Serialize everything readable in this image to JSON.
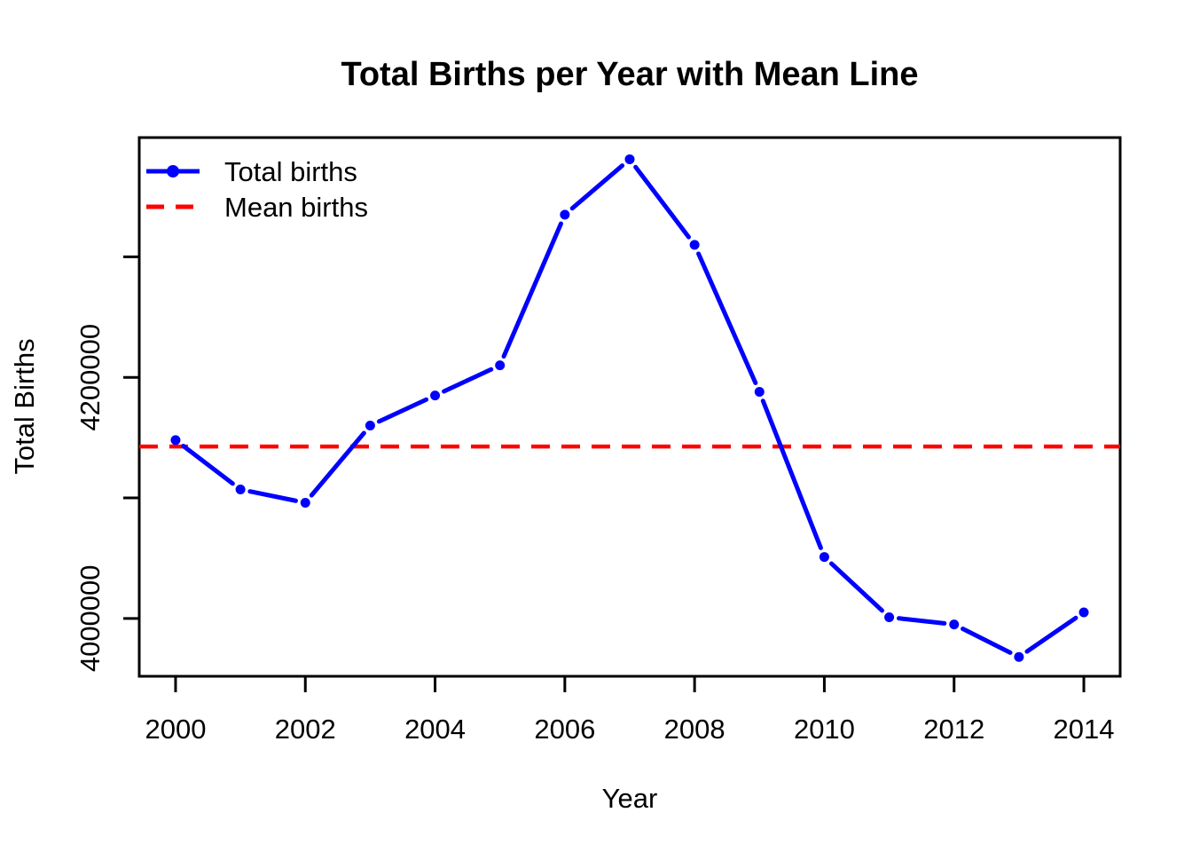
{
  "chart_data": {
    "type": "line",
    "title": "Total Births per Year with Mean Line",
    "xlabel": "Year",
    "ylabel": "Total Births",
    "x": [
      2000,
      2001,
      2002,
      2003,
      2004,
      2005,
      2006,
      2007,
      2008,
      2009,
      2010,
      2011,
      2012,
      2013,
      2014
    ],
    "series": [
      {
        "name": "Total births",
        "style": "solid-line-with-points",
        "color": "#0000FF",
        "values": [
          4148000,
          4107000,
          4096000,
          4160000,
          4185000,
          4210000,
          4335000,
          4381000,
          4310000,
          4188000,
          4051000,
          4001000,
          3995000,
          3968000,
          4005000
        ]
      },
      {
        "name": "Mean births",
        "style": "horizontal-dashed-line",
        "color": "#FF0000",
        "value": 4142667
      }
    ],
    "xlim": [
      1999.44,
      2014.56
    ],
    "ylim": [
      3952000,
      4399000
    ],
    "xticks": [
      {
        "v": 2000,
        "label": "2000"
      },
      {
        "v": 2002,
        "label": "2002"
      },
      {
        "v": 2004,
        "label": "2004"
      },
      {
        "v": 2006,
        "label": "2006"
      },
      {
        "v": 2008,
        "label": "2008"
      },
      {
        "v": 2010,
        "label": "2010"
      },
      {
        "v": 2012,
        "label": "2012"
      },
      {
        "v": 2014,
        "label": "2014"
      }
    ],
    "yticks": [
      {
        "v": 4000000,
        "label": "4000000"
      },
      {
        "v": 4100000,
        "label": ""
      },
      {
        "v": 4200000,
        "label": "4200000"
      },
      {
        "v": 4300000,
        "label": ""
      }
    ],
    "grid": false,
    "legend": {
      "position": "topleft",
      "entries": [
        {
          "label": "Total births",
          "color": "#0000FF",
          "marker": "solid-line-with-dot"
        },
        {
          "label": "Mean births",
          "color": "#FF0000",
          "marker": "dashed-line"
        }
      ]
    }
  },
  "colors": {
    "series_blue": "#0000FF",
    "mean_red": "#FF0000",
    "axis_black": "#000000",
    "background": "#FFFFFF"
  }
}
